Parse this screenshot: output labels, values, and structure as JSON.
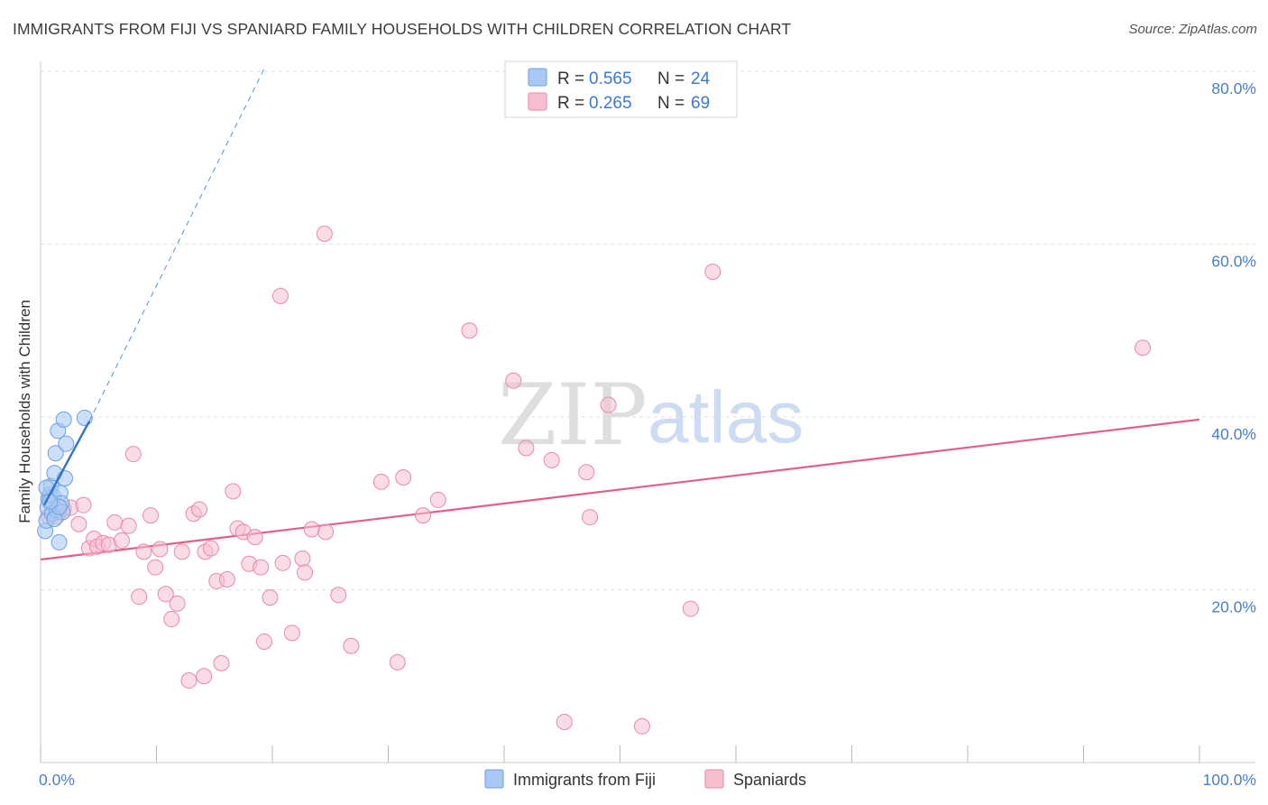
{
  "title": "IMMIGRANTS FROM FIJI VS SPANIARD FAMILY HOUSEHOLDS WITH CHILDREN CORRELATION CHART",
  "source": "Source: ZipAtlas.com",
  "watermark": {
    "zip": "ZIP",
    "atlas": "atlas"
  },
  "colors": {
    "fiji_fill": "#a9c9f4",
    "fiji_stroke": "#6fa0df",
    "fiji_line": "#2f72d0",
    "spain_fill": "#f6bfd0",
    "spain_stroke": "#e98aa8",
    "spain_line": "#e0608a",
    "axis_text": "#4a7fc9",
    "grid": "#dddddd"
  },
  "stats_box": {
    "rows": [
      {
        "r_label": "R = ",
        "r_value": "0.565",
        "n_label": "N = ",
        "n_value": "24"
      },
      {
        "r_label": "R = ",
        "r_value": "0.265",
        "n_label": "N = ",
        "n_value": "69"
      }
    ]
  },
  "chart_data": {
    "type": "scatter",
    "title": "IMMIGRANTS FROM FIJI VS SPANIARD FAMILY HOUSEHOLDS WITH CHILDREN CORRELATION CHART",
    "xlabel": "",
    "ylabel": "Family Households with Children",
    "xlim": [
      0,
      100
    ],
    "ylim": [
      0,
      80
    ],
    "x_tick_labels": [
      {
        "value": 0,
        "label": "0.0%"
      },
      {
        "value": 100,
        "label": "100.0%"
      }
    ],
    "y_tick_labels": [
      {
        "value": 20,
        "label": "20.0%"
      },
      {
        "value": 40,
        "label": "40.0%"
      },
      {
        "value": 60,
        "label": "60.0%"
      },
      {
        "value": 80,
        "label": "80.0%"
      }
    ],
    "x_minor_ticks": [
      0,
      10,
      20,
      30,
      40,
      50,
      60,
      70,
      80,
      90,
      100
    ],
    "series": [
      {
        "name": "Immigrants from Fiji",
        "R": 0.565,
        "N": 24,
        "trend": {
          "x0": 0.3,
          "y0": 29.8,
          "x1": 4.2,
          "y1": 39.5,
          "extend_x1": 19.3,
          "extend_y1": 80.3
        },
        "points": [
          [
            0.4,
            26.8
          ],
          [
            0.5,
            28.0
          ],
          [
            0.6,
            29.5
          ],
          [
            0.7,
            30.5
          ],
          [
            0.8,
            31.0
          ],
          [
            0.9,
            32.0
          ],
          [
            1.0,
            28.8
          ],
          [
            1.1,
            30.8
          ],
          [
            1.2,
            33.5
          ],
          [
            1.3,
            35.8
          ],
          [
            1.4,
            29.2
          ],
          [
            1.5,
            38.4
          ],
          [
            1.6,
            25.5
          ],
          [
            1.7,
            31.2
          ],
          [
            1.8,
            30.0
          ],
          [
            1.9,
            29.0
          ],
          [
            2.0,
            39.7
          ],
          [
            2.1,
            32.9
          ],
          [
            2.2,
            36.9
          ],
          [
            0.5,
            31.8
          ],
          [
            1.2,
            28.2
          ],
          [
            1.6,
            29.6
          ],
          [
            3.8,
            39.9
          ],
          [
            0.8,
            30.2
          ]
        ]
      },
      {
        "name": "Spaniards",
        "R": 0.265,
        "N": 69,
        "trend": {
          "x0": 0,
          "y0": 23.5,
          "x1": 100,
          "y1": 39.7
        },
        "points": [
          [
            0.7,
            28.5
          ],
          [
            1.4,
            28.5
          ],
          [
            1.6,
            29.0
          ],
          [
            2.0,
            29.4
          ],
          [
            2.6,
            29.5
          ],
          [
            3.3,
            27.6
          ],
          [
            3.7,
            29.8
          ],
          [
            4.2,
            24.8
          ],
          [
            4.6,
            25.9
          ],
          [
            4.9,
            25.0
          ],
          [
            5.4,
            25.4
          ],
          [
            5.9,
            25.2
          ],
          [
            6.4,
            27.8
          ],
          [
            7.0,
            25.7
          ],
          [
            7.6,
            27.4
          ],
          [
            8.0,
            35.7
          ],
          [
            8.5,
            19.2
          ],
          [
            8.9,
            24.4
          ],
          [
            9.5,
            28.6
          ],
          [
            9.9,
            22.6
          ],
          [
            10.3,
            24.7
          ],
          [
            10.8,
            19.5
          ],
          [
            11.3,
            16.6
          ],
          [
            11.8,
            18.4
          ],
          [
            12.2,
            24.4
          ],
          [
            12.8,
            9.5
          ],
          [
            13.2,
            28.8
          ],
          [
            13.7,
            29.3
          ],
          [
            14.2,
            24.4
          ],
          [
            14.7,
            24.8
          ],
          [
            15.2,
            21.0
          ],
          [
            15.6,
            11.5
          ],
          [
            16.1,
            21.2
          ],
          [
            16.6,
            31.4
          ],
          [
            17.0,
            27.1
          ],
          [
            17.5,
            26.7
          ],
          [
            18.0,
            23.0
          ],
          [
            18.5,
            26.1
          ],
          [
            19.0,
            22.6
          ],
          [
            19.3,
            14.0
          ],
          [
            19.8,
            19.1
          ],
          [
            20.7,
            54.0
          ],
          [
            20.9,
            23.1
          ],
          [
            21.7,
            15.0
          ],
          [
            22.6,
            23.6
          ],
          [
            22.8,
            22.0
          ],
          [
            23.4,
            27.0
          ],
          [
            24.6,
            26.7
          ],
          [
            24.5,
            61.2
          ],
          [
            25.7,
            19.4
          ],
          [
            26.8,
            13.5
          ],
          [
            29.4,
            32.5
          ],
          [
            30.8,
            11.6
          ],
          [
            31.3,
            33.0
          ],
          [
            33.0,
            28.6
          ],
          [
            34.3,
            30.4
          ],
          [
            37.0,
            50.0
          ],
          [
            40.8,
            44.2
          ],
          [
            41.9,
            36.4
          ],
          [
            44.1,
            35.0
          ],
          [
            45.2,
            4.7
          ],
          [
            47.1,
            33.6
          ],
          [
            47.4,
            28.4
          ],
          [
            49.0,
            41.4
          ],
          [
            51.9,
            4.2
          ],
          [
            56.1,
            17.8
          ],
          [
            58.0,
            56.8
          ],
          [
            95.1,
            48.0
          ],
          [
            14.1,
            10.0
          ]
        ]
      }
    ],
    "legend": [
      "Immigrants from Fiji",
      "Spaniards"
    ],
    "legend_position": "bottom-center",
    "grid": true
  }
}
